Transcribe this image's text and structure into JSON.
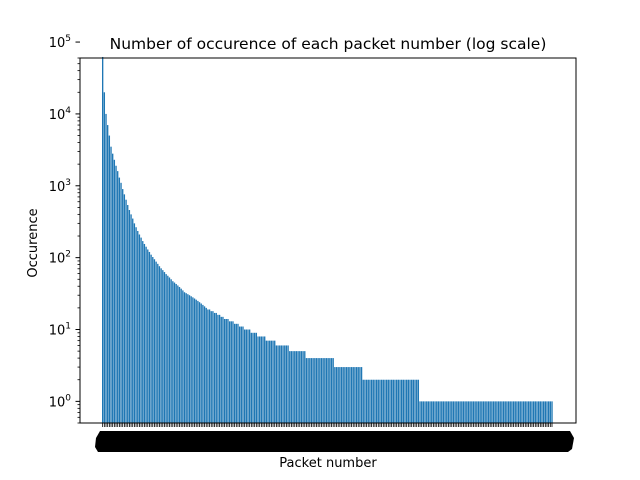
{
  "chart_data": {
    "type": "bar",
    "title": "Number of occurence of each packet number (log scale)",
    "xlabel": "Packet number",
    "ylabel": "Occurence",
    "y_scale": "log",
    "ylim": [
      0.5,
      60000
    ],
    "y_ticks": [
      {
        "value": 1,
        "base": "10",
        "exp": "0"
      },
      {
        "value": 10,
        "base": "10",
        "exp": "1"
      },
      {
        "value": 100,
        "base": "10",
        "exp": "2"
      },
      {
        "value": 1000,
        "base": "10",
        "exp": "3"
      },
      {
        "value": 10000,
        "base": "10",
        "exp": "4"
      },
      {
        "value": 100000,
        "base": "10",
        "exp": "5"
      }
    ],
    "grid": false,
    "bar_color": "#1f77b4",
    "series_note": "Sorted descending occurrence counts per packet number; x tick labels overlap into an unreadable black band.",
    "values": [
      62000,
      20000,
      10000,
      7000,
      5000,
      3500,
      2800,
      2300,
      1900,
      1600,
      1300,
      1100,
      900,
      760,
      640,
      540,
      460,
      400,
      350,
      300,
      265,
      235,
      210,
      190,
      170,
      155,
      142,
      130,
      120,
      110,
      102,
      95,
      88,
      82,
      76,
      71,
      67,
      63,
      59,
      56,
      53,
      50,
      47,
      45,
      43,
      41,
      39,
      37,
      35,
      33,
      32,
      31,
      30,
      29,
      28,
      27,
      26,
      25,
      24,
      23,
      22,
      21,
      20,
      19,
      19,
      18,
      18,
      17,
      17,
      16,
      16,
      15,
      15,
      14,
      14,
      14,
      13,
      13,
      13,
      12,
      12,
      12,
      11,
      11,
      11,
      10,
      10,
      10,
      10,
      9,
      9,
      9,
      9,
      8,
      8,
      8,
      8,
      8,
      7,
      7,
      7,
      7,
      7,
      7,
      6,
      6,
      6,
      6,
      6,
      6,
      6,
      6,
      5,
      5,
      5,
      5,
      5,
      5,
      5,
      5,
      5,
      5,
      4,
      4,
      4,
      4,
      4,
      4,
      4,
      4,
      4,
      4,
      4,
      4,
      4,
      4,
      4,
      4,
      4,
      3,
      3,
      3,
      3,
      3,
      3,
      3,
      3,
      3,
      3,
      3,
      3,
      3,
      3,
      3,
      3,
      3,
      2,
      2,
      2,
      2,
      2,
      2,
      2,
      2,
      2,
      2,
      2,
      2,
      2,
      2,
      2,
      2,
      2,
      2,
      2,
      2,
      2,
      2,
      2,
      2,
      2,
      2,
      2,
      2,
      2,
      2,
      2,
      2,
      2,
      2,
      1,
      1,
      1,
      1,
      1,
      1,
      1,
      1,
      1,
      1,
      1,
      1,
      1,
      1,
      1,
      1,
      1,
      1,
      1,
      1,
      1,
      1,
      1,
      1,
      1,
      1,
      1,
      1,
      1,
      1,
      1,
      1,
      1,
      1,
      1,
      1,
      1,
      1,
      1,
      1,
      1,
      1,
      1,
      1,
      1,
      1,
      1,
      1,
      1,
      1,
      1,
      1,
      1,
      1,
      1,
      1,
      1,
      1,
      1,
      1,
      1,
      1,
      1,
      1,
      1,
      1,
      1,
      1,
      1,
      1,
      1,
      1,
      1,
      1,
      1,
      1,
      1,
      1,
      1,
      1
    ]
  }
}
